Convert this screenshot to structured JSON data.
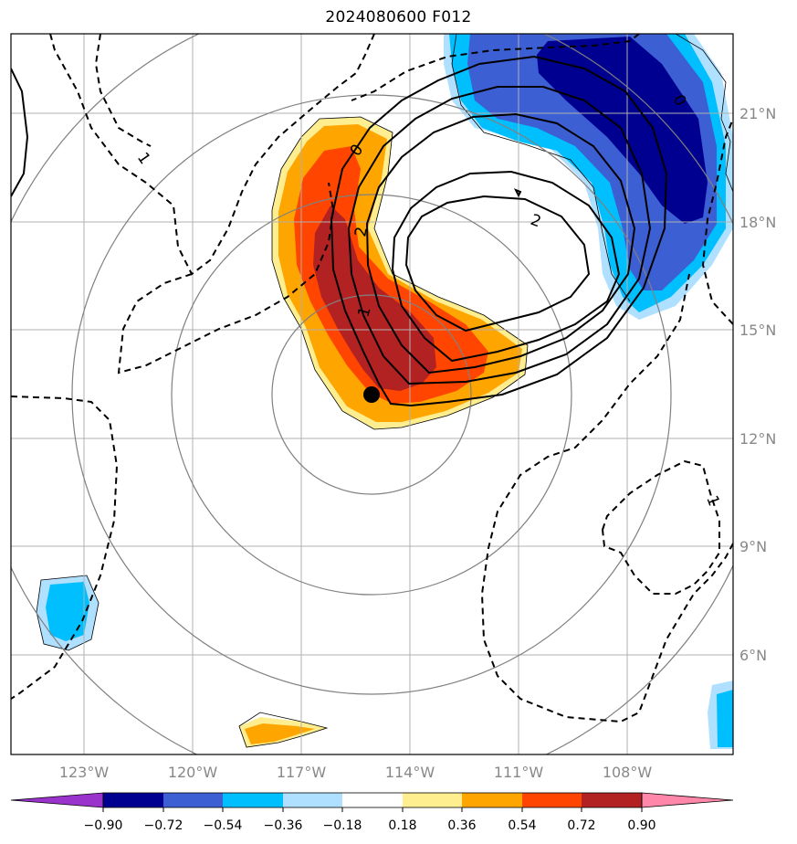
{
  "title": "2024080600 F012",
  "map": {
    "lon_range": [
      -124.8,
      -105.8
    ],
    "lat_range": [
      3.3,
      23.3
    ],
    "lon_ticks": [
      {
        "value": -123,
        "label": "123°W"
      },
      {
        "value": -120,
        "label": "120°W"
      },
      {
        "value": -117,
        "label": "117°W"
      },
      {
        "value": -114,
        "label": "114°W"
      },
      {
        "value": -111,
        "label": "111°W"
      },
      {
        "value": -108,
        "label": "108°W"
      }
    ],
    "lat_ticks": [
      {
        "value": 21,
        "label": "21°N"
      },
      {
        "value": 18,
        "label": "18°N"
      },
      {
        "value": 15,
        "label": "15°N"
      },
      {
        "value": 12,
        "label": "12°N"
      },
      {
        "value": 9,
        "label": "9°N"
      },
      {
        "value": 6,
        "label": "6°N"
      }
    ],
    "storm_center": {
      "lon": -115.1,
      "lat": 13.2
    },
    "range_rings_deg": [
      2.75,
      5.5,
      8.25,
      11
    ],
    "contour_labels": [
      "1",
      "0",
      "2",
      "2",
      "1",
      "0",
      "1"
    ]
  },
  "colorbar": {
    "colors": [
      "#9933cc",
      "#000090",
      "#3d5fd4",
      "#00bfff",
      "#b0e0ff",
      "#ffffff",
      "#ffee90",
      "#ffa500",
      "#ff4500",
      "#b22222",
      "#ff88aa"
    ],
    "tick_labels": [
      "−0.90",
      "−0.72",
      "−0.54",
      "−0.36",
      "−0.18",
      "0.18",
      "0.36",
      "0.54",
      "0.72",
      "0.90"
    ]
  }
}
